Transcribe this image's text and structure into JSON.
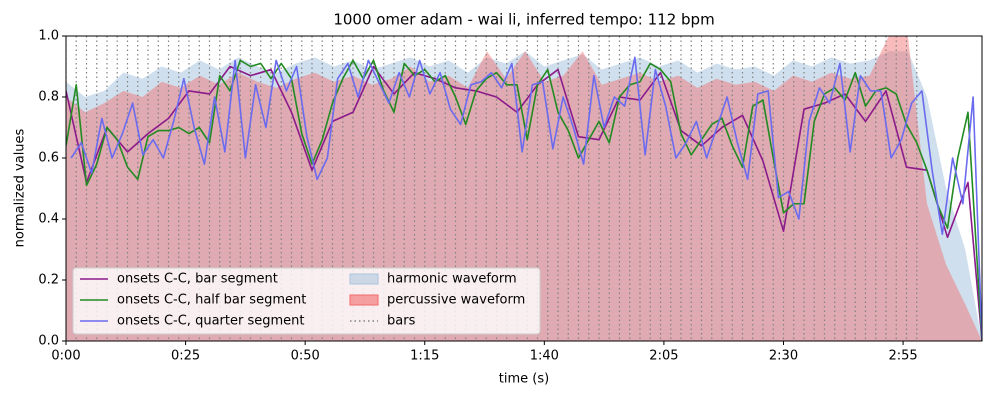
{
  "chart_data": {
    "type": "line",
    "title": "1000 omer adam - wai li, inferred tempo: 112 bpm",
    "xlabel": "time (s)",
    "ylabel": "normalized values",
    "xlim": [
      0,
      191.5
    ],
    "ylim": [
      0,
      1
    ],
    "xticks": [
      {
        "value": 0,
        "label": "0:00"
      },
      {
        "value": 25,
        "label": "0:25"
      },
      {
        "value": 50,
        "label": "0:50"
      },
      {
        "value": 75,
        "label": "1:15"
      },
      {
        "value": 100,
        "label": "1:40"
      },
      {
        "value": 125,
        "label": "2:05"
      },
      {
        "value": 150,
        "label": "2:30"
      },
      {
        "value": 175,
        "label": "2:55"
      }
    ],
    "yticks": [
      {
        "value": 0,
        "label": "0.0"
      },
      {
        "value": 0.2,
        "label": "0.2"
      },
      {
        "value": 0.4,
        "label": "0.4"
      },
      {
        "value": 0.6,
        "label": "0.6"
      },
      {
        "value": 0.8,
        "label": "0.8"
      },
      {
        "value": 1,
        "label": "1.0"
      }
    ],
    "legend": "lower left",
    "areas": [
      {
        "name": "harmonic waveform",
        "color": "#a9c4de",
        "x": [
          0,
          4,
          8,
          12,
          16,
          20,
          24,
          28,
          32,
          36,
          40,
          44,
          48,
          52,
          56,
          60,
          64,
          68,
          72,
          76,
          80,
          84,
          88,
          92,
          96,
          100,
          104,
          108,
          112,
          116,
          120,
          124,
          128,
          132,
          136,
          140,
          144,
          148,
          152,
          156,
          160,
          164,
          168,
          172,
          176,
          180,
          184,
          188,
          191.5
        ],
        "values": [
          0.85,
          0.8,
          0.82,
          0.88,
          0.86,
          0.9,
          0.88,
          0.92,
          0.89,
          0.93,
          0.9,
          0.88,
          0.91,
          0.93,
          0.9,
          0.92,
          0.89,
          0.91,
          0.93,
          0.9,
          0.92,
          0.88,
          0.93,
          0.91,
          0.95,
          0.9,
          0.92,
          0.94,
          0.89,
          0.91,
          0.93,
          0.9,
          0.92,
          0.88,
          0.91,
          0.89,
          0.9,
          0.87,
          0.92,
          0.9,
          0.93,
          0.91,
          0.92,
          0.95,
          0.95,
          0.8,
          0.5,
          0.3,
          0.0
        ]
      },
      {
        "name": "percussive waveform",
        "color": "#f26b6b",
        "x": [
          0,
          4,
          8,
          12,
          16,
          20,
          24,
          28,
          32,
          36,
          40,
          44,
          48,
          52,
          56,
          60,
          64,
          68,
          72,
          76,
          80,
          84,
          88,
          92,
          96,
          100,
          104,
          108,
          112,
          116,
          120,
          124,
          128,
          132,
          136,
          140,
          144,
          148,
          152,
          156,
          160,
          164,
          168,
          172,
          176,
          180,
          184,
          188,
          191.5
        ],
        "values": [
          0.8,
          0.75,
          0.78,
          0.82,
          0.8,
          0.85,
          0.83,
          0.87,
          0.84,
          0.88,
          0.85,
          0.83,
          0.86,
          0.88,
          0.85,
          0.87,
          0.84,
          0.86,
          0.9,
          0.85,
          0.87,
          0.83,
          0.95,
          0.86,
          0.95,
          0.85,
          0.87,
          0.95,
          0.84,
          0.86,
          0.88,
          0.85,
          0.87,
          0.83,
          0.86,
          0.84,
          0.85,
          0.82,
          0.87,
          0.85,
          0.88,
          0.86,
          0.87,
          1.0,
          1.0,
          0.45,
          0.25,
          0.12,
          0.0
        ]
      }
    ],
    "bars": {
      "name": "bars",
      "color": "#808080",
      "x": [
        0,
        2.14,
        4.29,
        6.43,
        8.57,
        10.71,
        12.86,
        15,
        17.14,
        19.29,
        21.43,
        23.57,
        25.71,
        27.86,
        30,
        32.14,
        34.29,
        36.43,
        38.57,
        40.71,
        42.86,
        45,
        47.14,
        49.29,
        51.43,
        53.57,
        55.71,
        57.86,
        60,
        62.14,
        64.29,
        66.43,
        68.57,
        70.71,
        72.86,
        75,
        77.14,
        79.29,
        81.43,
        83.57,
        85.71,
        87.86,
        90,
        92.14,
        94.29,
        96.43,
        98.57,
        100.71,
        102.86,
        105,
        107.14,
        109.29,
        111.43,
        113.57,
        115.71,
        117.86,
        120,
        122.14,
        124.29,
        126.43,
        128.57,
        130.71,
        132.86,
        135,
        137.14,
        139.29,
        141.43,
        143.57,
        145.71,
        147.86,
        150,
        152.14,
        154.29,
        156.43,
        158.57,
        160.71,
        162.86,
        165,
        167.14,
        169.29,
        171.43,
        173.57,
        175.71,
        177.86
      ]
    },
    "series": [
      {
        "name": "onsets C-C, bar segment",
        "color": "#8b1a8b",
        "x": [
          0,
          4.29,
          8.57,
          12.86,
          17.14,
          21.43,
          25.71,
          30,
          34.29,
          38.57,
          42.86,
          47.14,
          51.43,
          55.71,
          60,
          64.29,
          68.57,
          72.86,
          77.14,
          81.43,
          85.71,
          90,
          94.29,
          98.57,
          102.86,
          107.14,
          111.43,
          115.71,
          120,
          124.29,
          128.57,
          132.86,
          137.14,
          141.43,
          145.71,
          150,
          154.29,
          158.57,
          162.86,
          167.14,
          171.43,
          175.71,
          180,
          184.29,
          188.57,
          191.5
        ],
        "values": [
          0.82,
          0.52,
          0.7,
          0.62,
          0.68,
          0.73,
          0.82,
          0.81,
          0.9,
          0.87,
          0.89,
          0.75,
          0.56,
          0.72,
          0.75,
          0.9,
          0.81,
          0.88,
          0.86,
          0.83,
          0.82,
          0.8,
          0.75,
          0.84,
          0.89,
          0.67,
          0.66,
          0.8,
          0.79,
          0.88,
          0.69,
          0.64,
          0.7,
          0.74,
          0.59,
          0.36,
          0.76,
          0.78,
          0.81,
          0.72,
          0.82,
          0.57,
          0.56,
          0.34,
          0.52,
          0.0
        ]
      },
      {
        "name": "onsets C-C, half bar segment",
        "color": "#228b22",
        "x": [
          0,
          2.14,
          4.29,
          6.43,
          8.57,
          10.71,
          12.86,
          15,
          17.14,
          19.29,
          21.43,
          23.57,
          25.71,
          27.86,
          30,
          32.14,
          34.29,
          36.43,
          38.57,
          40.71,
          42.86,
          45,
          47.14,
          49.29,
          51.43,
          53.57,
          55.71,
          57.86,
          60,
          62.14,
          64.29,
          66.43,
          68.57,
          70.71,
          72.86,
          75,
          77.14,
          79.29,
          81.43,
          83.57,
          85.71,
          87.86,
          90,
          92.14,
          94.29,
          96.43,
          98.57,
          100.71,
          102.86,
          105,
          107.14,
          109.29,
          111.43,
          113.57,
          115.71,
          117.86,
          120,
          122.14,
          124.29,
          126.43,
          128.57,
          130.71,
          132.86,
          135,
          137.14,
          139.29,
          141.43,
          143.57,
          145.71,
          147.86,
          150,
          152.14,
          154.29,
          156.43,
          158.57,
          160.71,
          162.86,
          165,
          167.14,
          169.29,
          171.43,
          173.57,
          175.71,
          177.86,
          180,
          182.14,
          184.29,
          186.43,
          188.57,
          191.5
        ],
        "values": [
          0.64,
          0.84,
          0.51,
          0.58,
          0.7,
          0.66,
          0.57,
          0.53,
          0.67,
          0.69,
          0.69,
          0.7,
          0.68,
          0.7,
          0.65,
          0.87,
          0.82,
          0.92,
          0.9,
          0.91,
          0.86,
          0.91,
          0.86,
          0.68,
          0.58,
          0.66,
          0.78,
          0.86,
          0.92,
          0.86,
          0.92,
          0.82,
          0.75,
          0.91,
          0.87,
          0.89,
          0.85,
          0.87,
          0.8,
          0.71,
          0.82,
          0.86,
          0.88,
          0.84,
          0.84,
          0.66,
          0.84,
          0.89,
          0.75,
          0.69,
          0.6,
          0.66,
          0.72,
          0.65,
          0.8,
          0.84,
          0.85,
          0.91,
          0.89,
          0.85,
          0.68,
          0.61,
          0.66,
          0.71,
          0.73,
          0.64,
          0.57,
          0.77,
          0.79,
          0.6,
          0.42,
          0.45,
          0.45,
          0.72,
          0.81,
          0.83,
          0.79,
          0.88,
          0.77,
          0.82,
          0.83,
          0.81,
          0.71,
          0.65,
          0.56,
          0.45,
          0.37,
          0.6,
          0.75,
          0.0
        ]
      },
      {
        "name": "onsets C-C, quarter segment",
        "color": "#6b6bf0",
        "x": [
          1.07,
          3.21,
          5.36,
          7.5,
          9.64,
          11.79,
          13.93,
          16.07,
          18.21,
          20.36,
          22.5,
          24.64,
          26.79,
          28.93,
          31.07,
          33.21,
          35.36,
          37.5,
          39.64,
          41.79,
          43.93,
          46.07,
          48.21,
          50.36,
          52.5,
          54.64,
          56.79,
          58.93,
          61.07,
          63.21,
          65.36,
          67.5,
          69.64,
          71.79,
          73.93,
          76.07,
          78.21,
          80.36,
          82.5,
          84.64,
          86.79,
          88.93,
          91.07,
          93.21,
          95.36,
          97.5,
          99.64,
          101.79,
          103.93,
          106.07,
          108.21,
          110.36,
          112.5,
          114.64,
          116.79,
          118.93,
          121.07,
          123.21,
          125.36,
          127.5,
          129.64,
          131.79,
          133.93,
          136.07,
          138.21,
          140.36,
          142.5,
          144.64,
          146.79,
          148.93,
          151.07,
          153.21,
          155.36,
          157.5,
          159.64,
          161.79,
          163.93,
          166.07,
          168.21,
          170.36,
          172.5,
          174.64,
          176.79,
          178.93,
          181.07,
          183.21,
          185.36,
          187.5,
          189.64,
          191.5
        ],
        "values": [
          0.6,
          0.65,
          0.55,
          0.73,
          0.6,
          0.68,
          0.78,
          0.61,
          0.66,
          0.6,
          0.72,
          0.86,
          0.7,
          0.58,
          0.8,
          0.62,
          0.92,
          0.6,
          0.84,
          0.7,
          0.92,
          0.82,
          0.9,
          0.67,
          0.53,
          0.6,
          0.86,
          0.91,
          0.8,
          0.92,
          0.85,
          0.78,
          0.88,
          0.8,
          0.92,
          0.81,
          0.88,
          0.76,
          0.71,
          0.84,
          0.85,
          0.88,
          0.83,
          0.91,
          0.62,
          0.84,
          0.85,
          0.63,
          0.8,
          0.7,
          0.58,
          0.87,
          0.7,
          0.8,
          0.77,
          0.93,
          0.61,
          0.89,
          0.77,
          0.6,
          0.65,
          0.72,
          0.6,
          0.7,
          0.8,
          0.65,
          0.53,
          0.81,
          0.82,
          0.47,
          0.49,
          0.4,
          0.72,
          0.83,
          0.78,
          0.91,
          0.62,
          0.87,
          0.82,
          0.82,
          0.6,
          0.66,
          0.78,
          0.82,
          0.56,
          0.35,
          0.6,
          0.45,
          0.8,
          0.0
        ]
      }
    ]
  }
}
